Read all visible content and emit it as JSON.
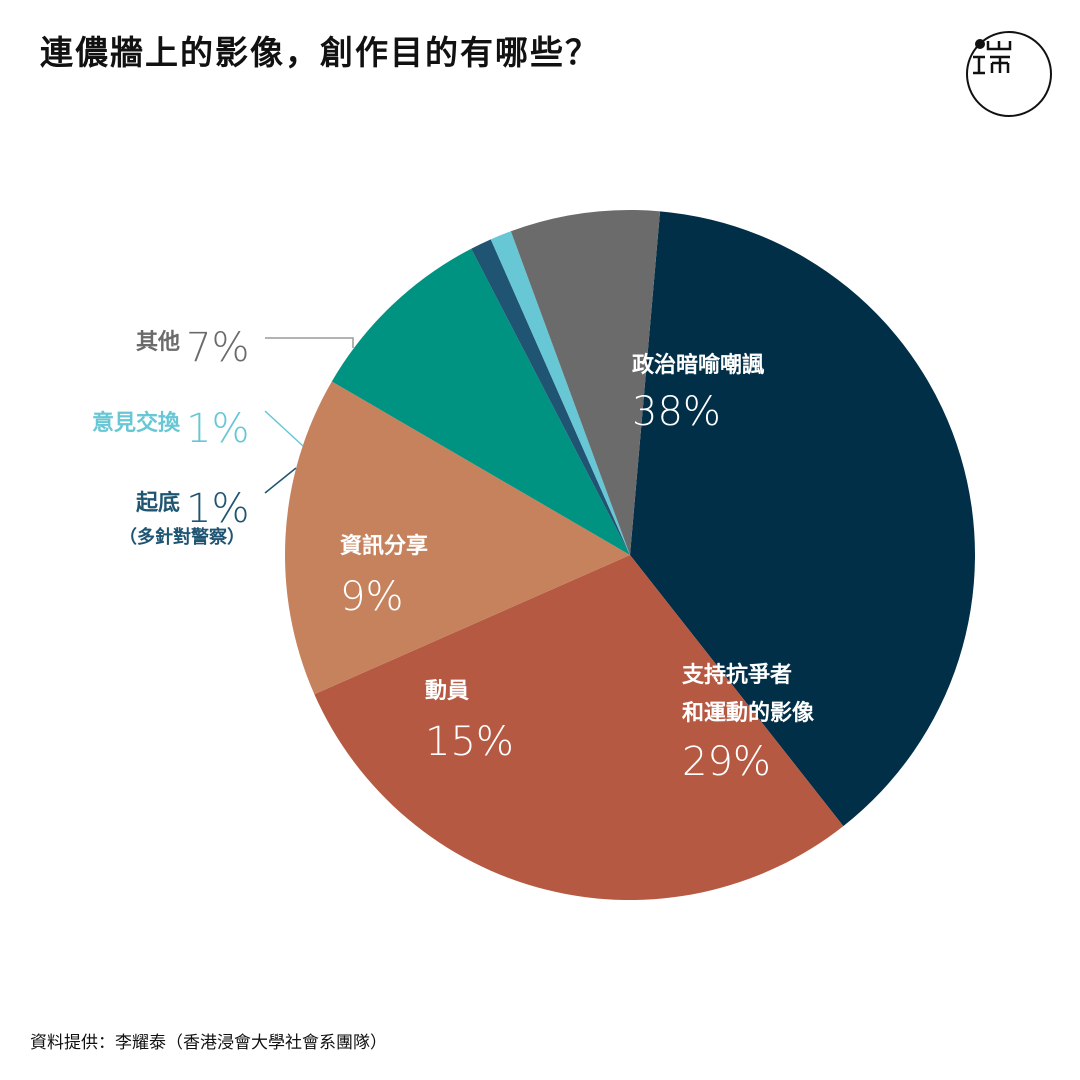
{
  "title": "連儂牆上的影像，創作目的有哪些？",
  "source": "資料提供：李耀泰（香港浸會大學社會系團隊）",
  "logo_icon": "initium-logo-icon",
  "chart_data": {
    "type": "pie",
    "start_angle_deg": 5,
    "slices": [
      {
        "label": "政治暗喻嘲諷",
        "value": 38,
        "value_text": "38%",
        "color": "#022f48",
        "label_color": "#ffffff",
        "label_inside": true
      },
      {
        "label": "支持抗爭者\n和運動的影像",
        "value": 29,
        "value_text": "29%",
        "color": "#b55942",
        "label_color": "#ffffff",
        "label_inside": true
      },
      {
        "label": "動員",
        "value": 15,
        "value_text": "15%",
        "color": "#c6825d",
        "label_color": "#ffffff",
        "label_inside": true
      },
      {
        "label": "資訊分享",
        "value": 9,
        "value_text": "9%",
        "color": "#009381",
        "label_color": "#ffffff",
        "label_inside": true
      },
      {
        "label": "起底",
        "sublabel": "（多針對警察）",
        "value": 1,
        "value_text": "1%",
        "color": "#1f5572",
        "label_color": "#1f5572",
        "label_inside": false
      },
      {
        "label": "意見交換",
        "value": 1,
        "value_text": "1%",
        "color": "#68c7d5",
        "label_color": "#68c7d5",
        "label_inside": false
      },
      {
        "label": "其他",
        "value": 7,
        "value_text": "7%",
        "color": "#6b6b6b",
        "label_color": "#6b6b6b",
        "label_inside": false
      }
    ]
  }
}
